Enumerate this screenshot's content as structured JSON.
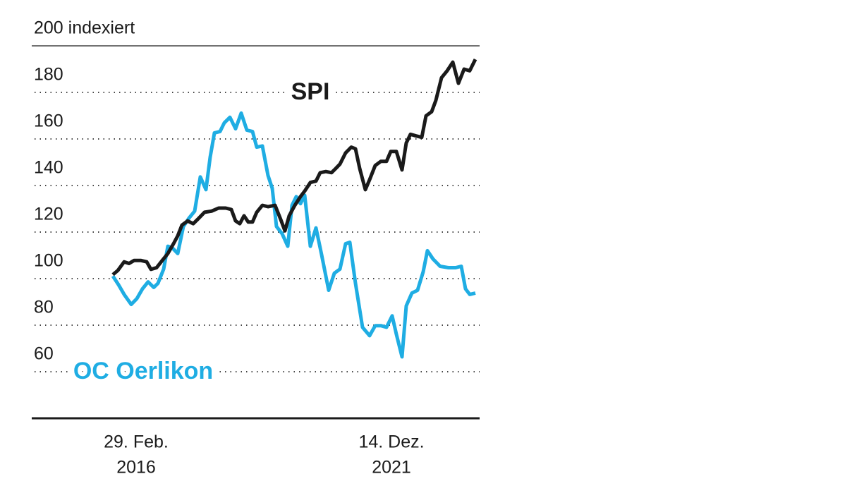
{
  "chart_data": {
    "type": "line",
    "ylim": [
      40,
      200
    ],
    "yticks": [
      {
        "value": 200,
        "label": "200 indexiert"
      },
      180,
      160,
      140,
      120,
      100,
      80,
      60
    ],
    "xlim": [
      0,
      514
    ],
    "xticks": [
      {
        "value": 33,
        "label": [
          "29. Feb.",
          "2016"
        ]
      },
      {
        "value": 395,
        "label": [
          "14. Dez.",
          "2021"
        ]
      }
    ],
    "grid": true,
    "series": [
      {
        "name": "SPI",
        "color": "#1a1a1a",
        "x": [
          0,
          7,
          16,
          23,
          30,
          40,
          48,
          54,
          62,
          70,
          78,
          86,
          92,
          98,
          106,
          114,
          120,
          130,
          140,
          150,
          160,
          168,
          174,
          180,
          186,
          192,
          198,
          204,
          212,
          220,
          230,
          238,
          244,
          250,
          258,
          266,
          272,
          280,
          288,
          294,
          302,
          310,
          316,
          322,
          330,
          338,
          344,
          350,
          358,
          364,
          372,
          380,
          388,
          394,
          402,
          410,
          416,
          422,
          430,
          438,
          444,
          452,
          458,
          466,
          474,
          482,
          490,
          498,
          506,
          514
        ],
        "values": [
          101.7,
          103.5,
          107.2,
          106.5,
          107.8,
          107.8,
          107.2,
          104,
          104.7,
          107.8,
          110.8,
          115,
          118.4,
          123,
          124.8,
          123.6,
          125.4,
          128.5,
          129,
          130.3,
          130.3,
          129.7,
          124.8,
          123.6,
          127,
          124.3,
          124.3,
          128.5,
          131.5,
          130.9,
          131.5,
          125.4,
          120.5,
          127,
          131.5,
          135.2,
          137.6,
          141.3,
          141.9,
          145.5,
          146,
          145.5,
          147.3,
          149.2,
          154,
          156.5,
          155.8,
          147.3,
          138.2,
          142.5,
          148.6,
          150.4,
          150.4,
          154.6,
          154.6,
          146.7,
          158.3,
          162,
          161.3,
          160.7,
          169.9,
          171.7,
          176.6,
          186.3,
          189.3,
          193,
          183.9,
          190,
          189.3,
          194.2
        ]
      },
      {
        "name": "OC Oerlikon",
        "color": "#1fade3",
        "x": [
          0,
          8,
          16,
          26,
          34,
          42,
          50,
          58,
          64,
          72,
          78,
          84,
          92,
          100,
          108,
          116,
          124,
          132,
          138,
          144,
          152,
          158,
          166,
          174,
          182,
          190,
          198,
          204,
          212,
          220,
          226,
          232,
          240,
          248,
          254,
          260,
          266,
          272,
          280,
          288,
          296,
          306,
          314,
          322,
          330,
          336,
          344,
          354,
          364,
          372,
          380,
          388,
          396,
          402,
          410,
          416,
          424,
          432,
          440,
          446,
          454,
          464,
          476,
          486,
          494,
          500,
          506,
          514
        ],
        "values": [
          101.1,
          97.4,
          93.2,
          88.9,
          91.4,
          95.6,
          98.6,
          96.2,
          98,
          104.1,
          113.9,
          113.3,
          110.8,
          122.4,
          126,
          129,
          143.7,
          138.2,
          152.2,
          162.6,
          163.2,
          166.9,
          169.3,
          164.4,
          171.1,
          163.8,
          163.2,
          156.5,
          157,
          144.3,
          138.8,
          122.4,
          119.3,
          113.9,
          131.5,
          135.2,
          132.2,
          135.8,
          113.9,
          121.8,
          110.2,
          95,
          102.3,
          104.1,
          115,
          115.6,
          98,
          79.1,
          75.5,
          79.8,
          79.8,
          79.1,
          84,
          76.1,
          66.4,
          88.3,
          93.8,
          95,
          102.9,
          112,
          108.4,
          105.3,
          104.7,
          104.7,
          105.3,
          95.6,
          93.2,
          93.8
        ]
      }
    ]
  }
}
